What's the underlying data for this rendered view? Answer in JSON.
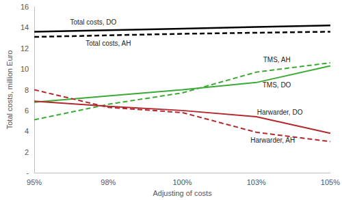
{
  "chart_data": {
    "type": "line",
    "x_label": "Adjusting of costs",
    "y_label": "Total costs, million Euro",
    "categories": [
      "95%",
      "98%",
      "100%",
      "103%",
      "105%"
    ],
    "ylim": [
      0,
      16
    ],
    "yticks": [
      {
        "value": 0,
        "label": "-"
      },
      2,
      4,
      6,
      8,
      10,
      12,
      14,
      16
    ],
    "grid": false,
    "series": [
      {
        "name": "Total costs, DO",
        "color": "#000000",
        "line_style": "solid",
        "values": [
          13.6,
          13.75,
          13.9,
          14.05,
          14.2
        ]
      },
      {
        "name": "Total costs, AH",
        "color": "#000000",
        "line_style": "dashed",
        "values": [
          13.1,
          13.25,
          13.4,
          13.5,
          13.6
        ]
      },
      {
        "name": "TMS, DO",
        "color": "#3aaa35",
        "line_style": "solid",
        "values": [
          6.8,
          7.4,
          8.0,
          8.7,
          10.3
        ]
      },
      {
        "name": "TMS, AH",
        "color": "#3aaa35",
        "line_style": "dashed",
        "values": [
          5.1,
          6.6,
          7.7,
          9.7,
          10.6
        ]
      },
      {
        "name": "Harwarder, DO",
        "color": "#b3262b",
        "line_style": "solid",
        "values": [
          6.9,
          6.4,
          6.0,
          5.4,
          3.8
        ]
      },
      {
        "name": "Harwarder, AH",
        "color": "#b3262b",
        "line_style": "dashed",
        "values": [
          8.0,
          6.3,
          5.8,
          3.9,
          3.0
        ]
      }
    ]
  }
}
